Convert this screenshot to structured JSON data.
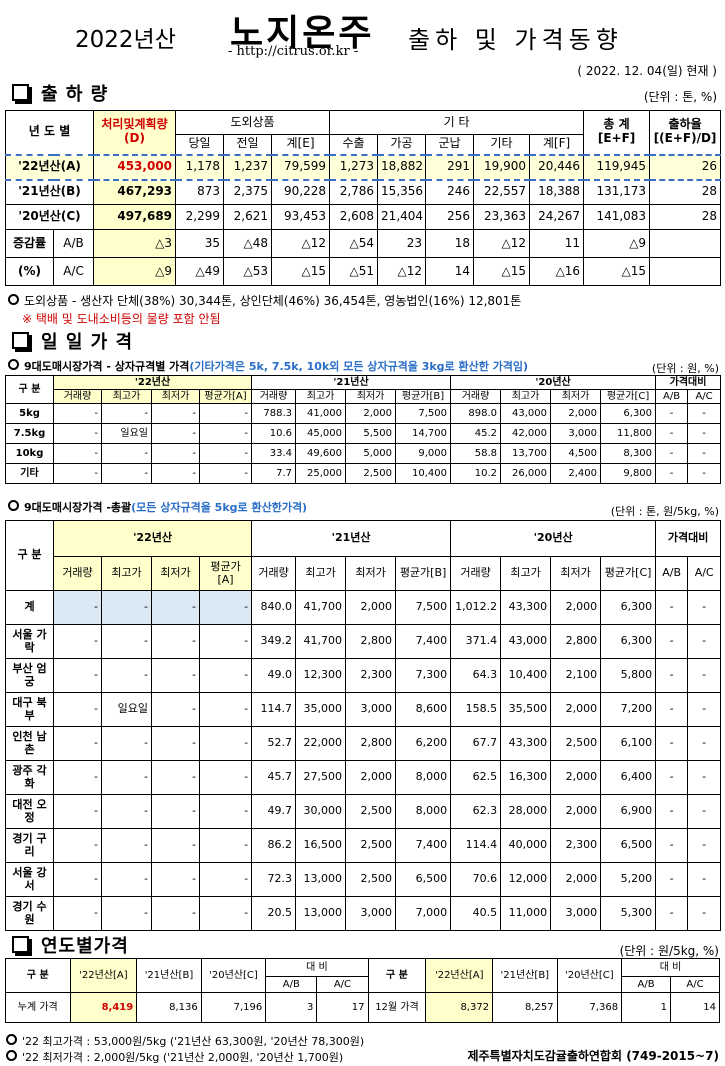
{
  "header": {
    "year": "2022년산",
    "brand": "노지온주",
    "url": "- http://citrus.or.kr -",
    "title": "출하 및 가격동향",
    "date": "( 2022. 12. 04(일) 현재 )"
  },
  "shipment": {
    "title": "출 하 량",
    "unit": "(단위 : 톤, %)",
    "head": {
      "year": "년 도 별",
      "plan": "처리및계획량\n(D)",
      "outside": "도외상품",
      "other": "기      타",
      "total": "총 계\n[E+F]",
      "rate": "출하율\n[(E+F)/D]",
      "sub": [
        "당일",
        "전일",
        "계[E]",
        "수출",
        "가공",
        "군납",
        "기타",
        "계[F]"
      ]
    },
    "rows": [
      {
        "label": "'22년산(A)",
        "cells": [
          "453,000",
          "1,178",
          "1,237",
          "79,599",
          "1,273",
          "18,882",
          "291",
          "19,900",
          "20,446",
          "119,945",
          "26"
        ]
      },
      {
        "label": "'21년산(B)",
        "cells": [
          "467,293",
          "873",
          "2,375",
          "90,228",
          "2,786",
          "15,356",
          "246",
          "22,557",
          "18,388",
          "131,173",
          "28"
        ]
      },
      {
        "label": "'20년산(C)",
        "cells": [
          "497,689",
          "2,299",
          "2,621",
          "93,453",
          "2,608",
          "21,404",
          "256",
          "23,363",
          "24,267",
          "141,083",
          "28"
        ]
      }
    ],
    "change": {
      "label": "증감률",
      "unit": "(%)",
      "rows": [
        {
          "label": "A/B",
          "cells": [
            "△3",
            "35",
            "△48",
            "△12",
            "△54",
            "23",
            "18",
            "△12",
            "11",
            "△9"
          ]
        },
        {
          "label": "A/C",
          "cells": [
            "△9",
            "△49",
            "△53",
            "△15",
            "△51",
            "△12",
            "14",
            "△15",
            "△16",
            "△15"
          ]
        }
      ]
    },
    "notes": [
      "도외상품 - 생산자 단체(38%) 30,344톤,  상인단체(46%) 36,454톤,  영농법인(16%) 12,801톤",
      "※ 택배 및 도내소비등의 물량 포함 안됨"
    ]
  },
  "daily": {
    "title": "일 일 가 격",
    "box": {
      "title": "9대도매시장가격 - 상자규격별 가격",
      "remark": "(기타가격은 5k, 7.5k, 10k외 모든 상자규격을 3kg로 환산한 가격임)",
      "unit": "(단위 : 원, %)",
      "head": {
        "section": "구 분",
        "years": [
          "'22년산",
          "'21년산",
          "'20년산"
        ],
        "compare": "가격대비",
        "sub": [
          "거래량",
          "최고가",
          "최저가",
          "평균가[A]",
          "거래량",
          "최고가",
          "최저가",
          "평균가[B]",
          "거래량",
          "최고가",
          "최저가",
          "평균가[C]",
          "A/B",
          "A/C"
        ]
      },
      "rows": [
        {
          "label": "5kg",
          "cells": [
            "-",
            "-",
            "-",
            "-",
            "788.3",
            "41,000",
            "2,000",
            "7,500",
            "898.0",
            "43,000",
            "2,000",
            "6,300",
            "-",
            "-"
          ]
        },
        {
          "label": "7.5kg",
          "cells": [
            "-",
            "일요일",
            "-",
            "-",
            "10.6",
            "45,000",
            "5,500",
            "14,700",
            "45.2",
            "42,000",
            "3,000",
            "11,800",
            "-",
            "-"
          ]
        },
        {
          "label": "10kg",
          "cells": [
            "-",
            "-",
            "-",
            "-",
            "33.4",
            "49,600",
            "5,000",
            "9,000",
            "58.8",
            "13,700",
            "4,500",
            "8,300",
            "-",
            "-"
          ]
        },
        {
          "label": "기타",
          "cells": [
            "-",
            "-",
            "-",
            "-",
            "7.7",
            "25,000",
            "2,500",
            "10,400",
            "10.2",
            "26,000",
            "2,400",
            "9,800",
            "-",
            "-"
          ]
        }
      ]
    },
    "summary": {
      "title": "9대도매시장가격 -총괄",
      "remark": "(모든 상자규격을 5kg로 환산한가격)",
      "unit": "(단위 : 톤, 원/5kg, %)",
      "head": {
        "section": "구 분",
        "years": [
          "'22년산",
          "'21년산",
          "'20년산"
        ],
        "compare": "가격대비",
        "sub": [
          "거래량",
          "최고가",
          "최저가",
          "평균가[A]",
          "거래량",
          "최고가",
          "최저가",
          "평균가[B]",
          "거래량",
          "최고가",
          "최저가",
          "평균가[C]",
          "A/B",
          "A/C"
        ]
      },
      "rows": [
        {
          "label": "계",
          "cells": [
            "-",
            "-",
            "-",
            "-",
            "840.0",
            "41,700",
            "2,000",
            "7,500",
            "1,012.2",
            "43,300",
            "2,000",
            "6,300",
            "-",
            "-"
          ]
        },
        {
          "label": "서울 가락",
          "cells": [
            "-",
            "-",
            "-",
            "-",
            "349.2",
            "41,700",
            "2,800",
            "7,400",
            "371.4",
            "43,000",
            "2,800",
            "6,300",
            "-",
            "-"
          ]
        },
        {
          "label": "부산 엄궁",
          "cells": [
            "-",
            "-",
            "-",
            "-",
            "49.0",
            "12,300",
            "2,300",
            "7,300",
            "64.3",
            "10,400",
            "2,100",
            "5,800",
            "-",
            "-"
          ]
        },
        {
          "label": "대구 북부",
          "cells": [
            "-",
            "일요일",
            "-",
            "-",
            "114.7",
            "35,000",
            "3,000",
            "8,600",
            "158.5",
            "35,500",
            "2,000",
            "7,200",
            "-",
            "-"
          ]
        },
        {
          "label": "인천 남촌",
          "cells": [
            "-",
            "-",
            "-",
            "-",
            "52.7",
            "22,000",
            "2,800",
            "6,200",
            "67.7",
            "43,300",
            "2,500",
            "6,100",
            "-",
            "-"
          ]
        },
        {
          "label": "광주 각화",
          "cells": [
            "-",
            "-",
            "-",
            "-",
            "45.7",
            "27,500",
            "2,000",
            "8,000",
            "62.5",
            "16,300",
            "2,000",
            "6,400",
            "-",
            "-"
          ]
        },
        {
          "label": "대전 오정",
          "cells": [
            "-",
            "-",
            "-",
            "-",
            "49.7",
            "30,000",
            "2,500",
            "8,000",
            "62.3",
            "28,000",
            "2,000",
            "6,900",
            "-",
            "-"
          ]
        },
        {
          "label": "경기 구리",
          "cells": [
            "-",
            "-",
            "-",
            "-",
            "86.2",
            "16,500",
            "2,500",
            "7,400",
            "114.4",
            "40,000",
            "2,300",
            "6,500",
            "-",
            "-"
          ]
        },
        {
          "label": "서울 강서",
          "cells": [
            "-",
            "-",
            "-",
            "-",
            "72.3",
            "13,000",
            "2,500",
            "6,500",
            "70.6",
            "12,000",
            "2,000",
            "5,200",
            "-",
            "-"
          ]
        },
        {
          "label": "경기 수원",
          "cells": [
            "-",
            "-",
            "-",
            "-",
            "20.5",
            "13,000",
            "3,000",
            "7,000",
            "40.5",
            "11,000",
            "3,000",
            "5,300",
            "-",
            "-"
          ]
        }
      ]
    }
  },
  "yearly": {
    "title": "연도별가격",
    "unit": "(단위 : 원/5kg, %)",
    "head": {
      "section": "구   분",
      "years": [
        "'22년산[A]",
        "'21년산[B]",
        "'20년산[C]"
      ],
      "compare": "대   비",
      "sub": [
        "A/B",
        "A/C"
      ]
    },
    "rows": [
      {
        "label": "누계 가격",
        "cells": [
          "8,419",
          "8,136",
          "7,196",
          "3",
          "17"
        ]
      },
      {
        "label": "12월 가격",
        "cells": [
          "8,372",
          "8,257",
          "7,368",
          "1",
          "14"
        ]
      }
    ]
  },
  "footer": {
    "notes": [
      "'22 최고가격 : 53,000원/5kg ('21년산 63,300원, '20년산 78,300원)",
      "'22 최저가격 :  2,000원/5kg ('21년산  2,000원, '20년산  1,700원)"
    ],
    "org": "제주특별자치도감귤출하연합회 (749-2015~7)"
  }
}
